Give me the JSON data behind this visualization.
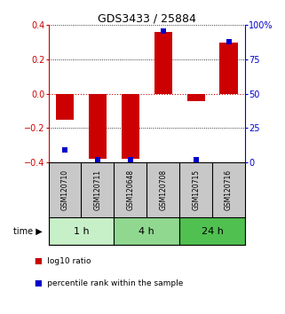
{
  "title": "GDS3433 / 25884",
  "samples": [
    "GSM120710",
    "GSM120711",
    "GSM120648",
    "GSM120708",
    "GSM120715",
    "GSM120716"
  ],
  "log10_ratio": [
    -0.15,
    -0.38,
    -0.38,
    0.36,
    -0.04,
    0.3
  ],
  "percentile_rank": [
    9,
    2,
    2,
    96,
    2,
    88
  ],
  "groups": [
    {
      "label": "1 h",
      "indices": [
        0,
        1
      ],
      "color": "#c8f0c8"
    },
    {
      "label": "4 h",
      "indices": [
        2,
        3
      ],
      "color": "#90d890"
    },
    {
      "label": "24 h",
      "indices": [
        4,
        5
      ],
      "color": "#50c050"
    }
  ],
  "ylim": [
    -0.4,
    0.4
  ],
  "yticks_left": [
    -0.4,
    -0.2,
    0.0,
    0.2,
    0.4
  ],
  "yticks_right_labels": [
    "0",
    "25",
    "50",
    "75",
    "100%"
  ],
  "red_color": "#cc0000",
  "blue_color": "#0000cc",
  "bar_width": 0.55,
  "dot_size": 25,
  "background_plot": "#ffffff",
  "background_label": "#c8c8c8",
  "legend_red": "log10 ratio",
  "legend_blue": "percentile rank within the sample",
  "time_label": "time"
}
